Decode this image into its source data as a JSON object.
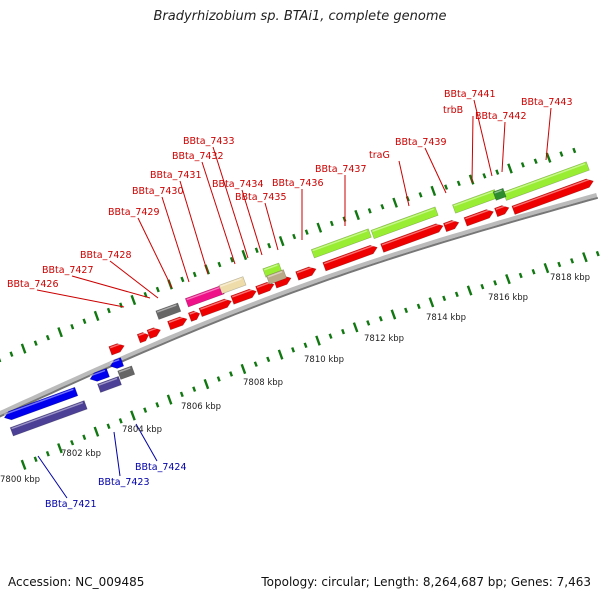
{
  "title": "Bradyrhizobium sp. BTAi1, complete genome",
  "footer": {
    "accession": "Accession: NC_009485",
    "summary": "Topology: circular; Length: 8,264,687 bp; Genes: 7,463"
  },
  "colors": {
    "forward_gene": "#ee0000",
    "reverse_gene": "#0000ee",
    "reverse_gene_dark": "#4b3f96",
    "rna_gene": "#99ee33",
    "special_pink": "#ee1188",
    "special_beige": "#eeddaa",
    "pseudo_gray": "#666666",
    "forward_label": "#cc0000",
    "reverse_label": "#0000aa",
    "tick": "#117711"
  },
  "ruler": [
    {
      "label": "7800 kbp"
    },
    {
      "label": "7802 kbp"
    },
    {
      "label": "7804 kbp"
    },
    {
      "label": "7806 kbp"
    },
    {
      "label": "7808 kbp"
    },
    {
      "label": "7810 kbp"
    },
    {
      "label": "7812 kbp"
    },
    {
      "label": "7814 kbp"
    },
    {
      "label": "7816 kbp"
    },
    {
      "label": "7818 kbp"
    }
  ],
  "gene_labels_forward": [
    "BBta_7426",
    "BBta_7427",
    "BBta_7428",
    "BBta_7429",
    "BBta_7430",
    "BBta_7431",
    "BBta_7432",
    "BBta_7433",
    "BBta_7434",
    "BBta_7435",
    "BBta_7436",
    "BBta_7437",
    "traG",
    "BBta_7439",
    "trbB",
    "BBta_7441",
    "BBta_7442",
    "BBta_7443"
  ],
  "gene_labels_reverse": [
    "BBta_7421",
    "BBta_7423",
    "BBta_7424"
  ]
}
